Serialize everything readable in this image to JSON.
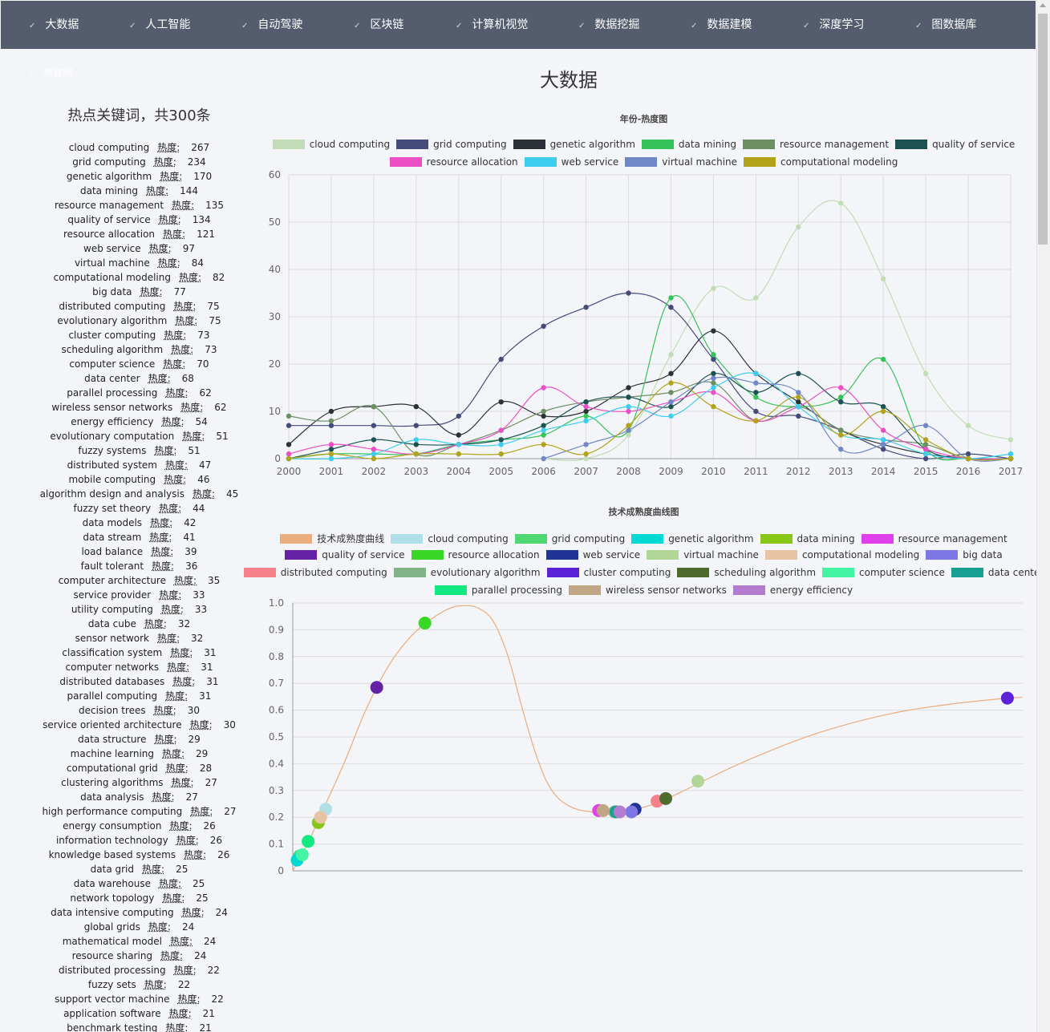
{
  "nav": {
    "items": [
      "大数据",
      "人工智能",
      "自动驾驶",
      "区块链",
      "计算机视觉",
      "数据挖掘",
      "数据建模",
      "深度学习",
      "图数据库"
    ],
    "sub_item": "物联网",
    "check_icon": "✓"
  },
  "page_title": "大数据",
  "left_panel": {
    "title": "热点关键词，共300条",
    "heat_label": "热度:",
    "keywords": [
      [
        "cloud computing",
        267
      ],
      [
        "grid computing",
        234
      ],
      [
        "genetic algorithm",
        170
      ],
      [
        "data mining",
        144
      ],
      [
        "resource management",
        135
      ],
      [
        "quality of service",
        134
      ],
      [
        "resource allocation",
        121
      ],
      [
        "web service",
        97
      ],
      [
        "virtual machine",
        84
      ],
      [
        "computational modeling",
        82
      ],
      [
        "big data",
        77
      ],
      [
        "distributed computing",
        75
      ],
      [
        "evolutionary algorithm",
        75
      ],
      [
        "cluster computing",
        73
      ],
      [
        "scheduling algorithm",
        73
      ],
      [
        "computer science",
        70
      ],
      [
        "data center",
        68
      ],
      [
        "parallel processing",
        62
      ],
      [
        "wireless sensor networks",
        62
      ],
      [
        "energy efficiency",
        54
      ],
      [
        "evolutionary computation",
        51
      ],
      [
        "fuzzy systems",
        51
      ],
      [
        "distributed system",
        47
      ],
      [
        "mobile computing",
        46
      ],
      [
        "algorithm design and analysis",
        45
      ],
      [
        "fuzzy set theory",
        44
      ],
      [
        "data models",
        42
      ],
      [
        "data stream",
        41
      ],
      [
        "load balance",
        39
      ],
      [
        "fault tolerant",
        36
      ],
      [
        "computer architecture",
        35
      ],
      [
        "service provider",
        33
      ],
      [
        "utility computing",
        33
      ],
      [
        "data cube",
        32
      ],
      [
        "sensor network",
        32
      ],
      [
        "classification system",
        31
      ],
      [
        "computer networks",
        31
      ],
      [
        "distributed databases",
        31
      ],
      [
        "parallel computing",
        31
      ],
      [
        "decision trees",
        30
      ],
      [
        "service oriented architecture",
        30
      ],
      [
        "data structure",
        29
      ],
      [
        "machine learning",
        29
      ],
      [
        "computational grid",
        28
      ],
      [
        "clustering algorithms",
        27
      ],
      [
        "data analysis",
        27
      ],
      [
        "high performance computing",
        27
      ],
      [
        "energy consumption",
        26
      ],
      [
        "information technology",
        26
      ],
      [
        "knowledge based systems",
        26
      ],
      [
        "data grid",
        25
      ],
      [
        "data warehouse",
        25
      ],
      [
        "network topology",
        25
      ],
      [
        "data intensive computing",
        24
      ],
      [
        "global grids",
        24
      ],
      [
        "mathematical model",
        24
      ],
      [
        "resource sharing",
        24
      ],
      [
        "distributed processing",
        22
      ],
      [
        "fuzzy sets",
        22
      ],
      [
        "support vector machine",
        22
      ],
      [
        "application software",
        21
      ],
      [
        "benchmark testing",
        21
      ]
    ]
  },
  "chart_data": [
    {
      "type": "line",
      "title": "年份-热度图",
      "x": [
        2000,
        2001,
        2002,
        2003,
        2004,
        2005,
        2006,
        2007,
        2008,
        2009,
        2010,
        2011,
        2012,
        2013,
        2014,
        2015,
        2016,
        2017
      ],
      "ylim": [
        0,
        60
      ],
      "yticks": [
        0,
        10,
        20,
        30,
        40,
        50,
        60
      ],
      "grid": true,
      "legend_position": "top",
      "series": [
        {
          "name": "cloud computing",
          "color": "#c2dcb8",
          "values": [
            null,
            null,
            null,
            null,
            null,
            null,
            0,
            0,
            5,
            22,
            36,
            34,
            49,
            54,
            38,
            18,
            7,
            4
          ]
        },
        {
          "name": "grid computing",
          "color": "#454b7a",
          "values": [
            7,
            7,
            7,
            7,
            9,
            21,
            28,
            32,
            35,
            32,
            21,
            10,
            9,
            6,
            2,
            0,
            1,
            0
          ]
        },
        {
          "name": "genetic algorithm",
          "color": "#2b3137",
          "values": [
            3,
            10,
            11,
            11,
            5,
            12,
            9,
            10,
            15,
            18,
            27,
            18,
            12,
            6,
            3,
            1,
            0,
            0
          ]
        },
        {
          "name": "data mining",
          "color": "#35c35a",
          "values": [
            0,
            1,
            1,
            1,
            3,
            4,
            5,
            9,
            6,
            34,
            22,
            13,
            11,
            13,
            21,
            2,
            0,
            0
          ]
        },
        {
          "name": "resource management",
          "color": "#6e8f64",
          "values": [
            9,
            8,
            11,
            1,
            3,
            6,
            10,
            12,
            13,
            14,
            16,
            8,
            11,
            6,
            4,
            3,
            0,
            0
          ]
        },
        {
          "name": "quality of service",
          "color": "#1c5252",
          "values": [
            0,
            2,
            4,
            3,
            3,
            4,
            7,
            12,
            13,
            11,
            18,
            14,
            18,
            12,
            11,
            2,
            0,
            0
          ]
        },
        {
          "name": "resource allocation",
          "color": "#ec4fc3",
          "values": [
            1,
            3,
            2,
            1,
            3,
            6,
            15,
            11,
            10,
            12,
            14,
            8,
            11,
            15,
            6,
            2,
            0,
            0
          ]
        },
        {
          "name": "web service",
          "color": "#3dcdee",
          "values": [
            0,
            0,
            1,
            4,
            3,
            3,
            6,
            8,
            11,
            9,
            15,
            18,
            11,
            5,
            4,
            1,
            0,
            1
          ]
        },
        {
          "name": "virtual machine",
          "color": "#7187c8",
          "values": [
            null,
            null,
            null,
            null,
            null,
            null,
            0,
            3,
            6,
            12,
            17,
            16,
            14,
            2,
            3,
            7,
            0,
            0
          ]
        },
        {
          "name": "computational modeling",
          "color": "#b1a41a",
          "values": [
            0,
            1,
            0,
            1,
            1,
            1,
            3,
            1,
            7,
            16,
            11,
            8,
            13,
            5,
            10,
            4,
            0,
            0
          ]
        }
      ]
    },
    {
      "type": "scatter",
      "title": "技术成熟度曲线图",
      "ylim": [
        0,
        1.0
      ],
      "yticks": [
        "0",
        "0.1",
        "0.2",
        "0.3",
        "0.4",
        "0.5",
        "0.6",
        "0.7",
        "0.8",
        "0.9",
        "1.0"
      ],
      "grid": true,
      "legend_position": "top",
      "curve_name": "技术成熟度曲线",
      "curve_color": "#e9ad7e",
      "series": [
        {
          "name": "cloud computing",
          "color": "#b0e0e6",
          "x": 0.045,
          "y": 0.23
        },
        {
          "name": "grid computing",
          "color": "#4fd774",
          "x": 0.009,
          "y": 0.055
        },
        {
          "name": "genetic algorithm",
          "color": "#00d8d4",
          "x": 0.006,
          "y": 0.04
        },
        {
          "name": "data mining",
          "color": "#87c617",
          "x": 0.035,
          "y": 0.18
        },
        {
          "name": "resource management",
          "color": "#e040eb",
          "x": 0.419,
          "y": 0.225
        },
        {
          "name": "quality of service",
          "color": "#6421a5",
          "x": 0.115,
          "y": 0.685
        },
        {
          "name": "resource allocation",
          "color": "#3ad626",
          "x": 0.181,
          "y": 0.925
        },
        {
          "name": "web service",
          "color": "#213495",
          "x": 0.469,
          "y": 0.23
        },
        {
          "name": "virtual machine",
          "color": "#b1d698",
          "x": 0.555,
          "y": 0.335
        },
        {
          "name": "computational modeling",
          "color": "#e5c3a3",
          "x": 0.038,
          "y": 0.2
        },
        {
          "name": "big data",
          "color": "#7c77e5",
          "x": 0.464,
          "y": 0.22
        },
        {
          "name": "distributed computing",
          "color": "#f8808a",
          "x": 0.499,
          "y": 0.26
        },
        {
          "name": "evolutionary algorithm",
          "color": "#80b487",
          "x": 0.441,
          "y": 0.22
        },
        {
          "name": "cluster computing",
          "color": "#5b22d6",
          "x": 0.979,
          "y": 0.645
        },
        {
          "name": "scheduling algorithm",
          "color": "#4f6b2d",
          "x": 0.511,
          "y": 0.27
        },
        {
          "name": "computer science",
          "color": "#43f4a3",
          "x": 0.013,
          "y": 0.06
        },
        {
          "name": "data center",
          "color": "#179f91",
          "x": 0.443,
          "y": 0.22
        },
        {
          "name": "parallel processing",
          "color": "#14e880",
          "x": 0.021,
          "y": 0.11
        },
        {
          "name": "wireless sensor networks",
          "color": "#c1a686",
          "x": 0.425,
          "y": 0.225
        },
        {
          "name": "energy efficiency",
          "color": "#b47cd1",
          "x": 0.448,
          "y": 0.22
        }
      ]
    }
  ]
}
